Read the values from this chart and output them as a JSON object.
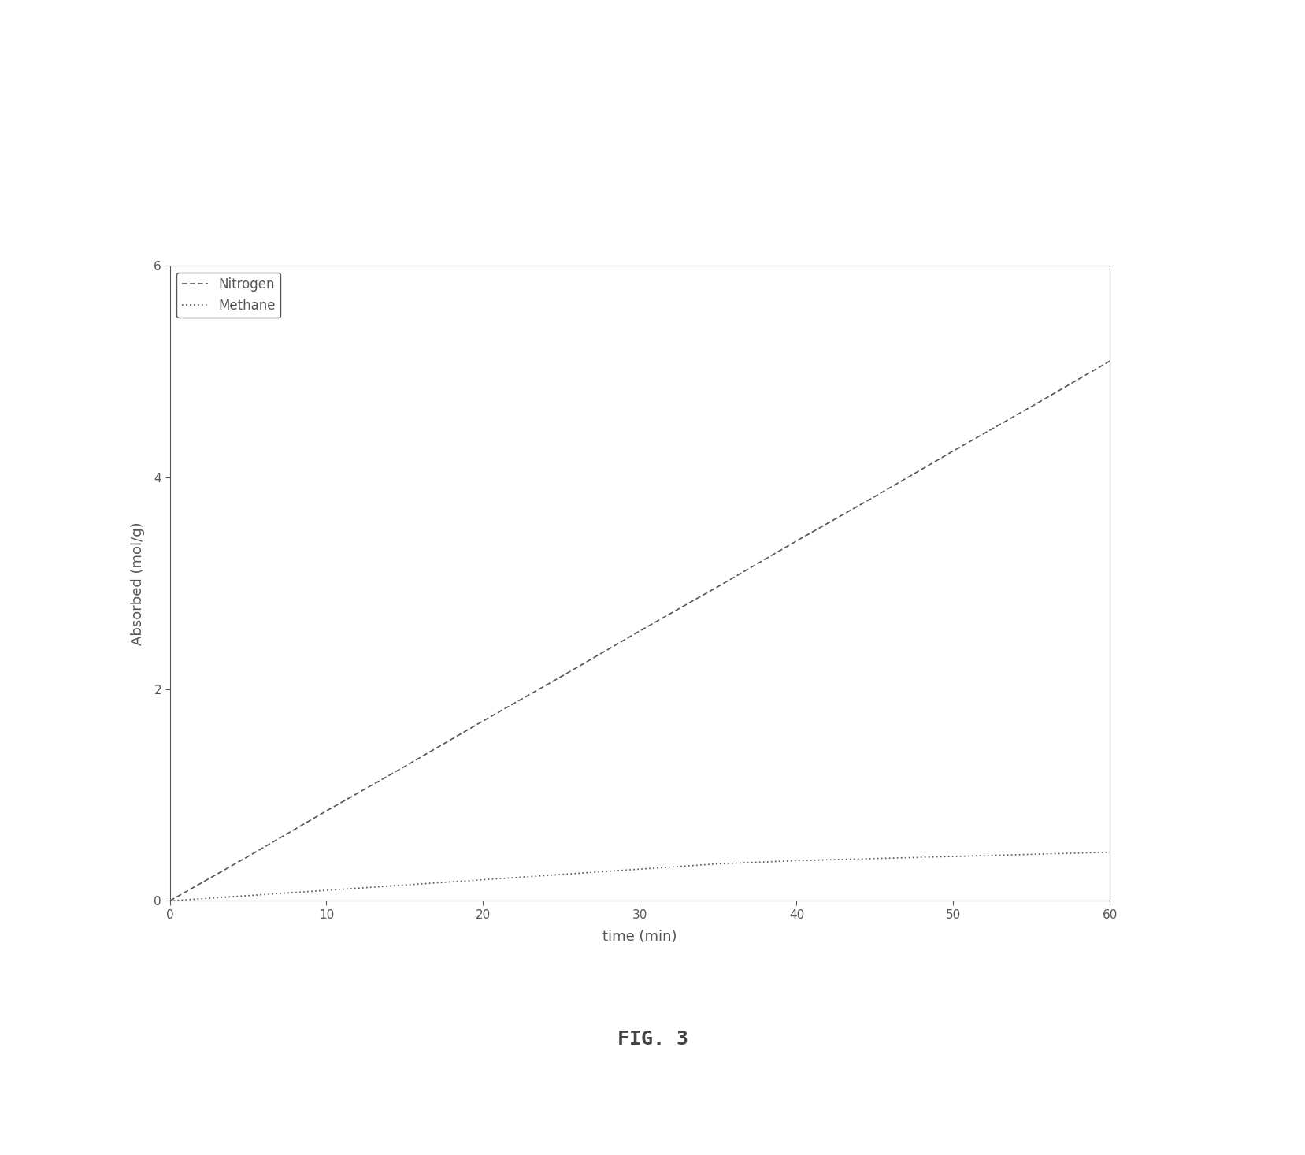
{
  "xlabel": "time (min)",
  "ylabel": "Absorbed (mol/g)",
  "figure_caption": "FIG. 3",
  "xlim": [
    0,
    60
  ],
  "ylim": [
    0,
    6
  ],
  "xticks": [
    0,
    10,
    20,
    30,
    40,
    50,
    60
  ],
  "yticks": [
    0,
    2,
    4,
    6
  ],
  "nitrogen_x": [
    0,
    5,
    10,
    15,
    20,
    25,
    30,
    35,
    40,
    45,
    50,
    55,
    60
  ],
  "nitrogen_y": [
    0,
    0.42,
    0.85,
    1.27,
    1.7,
    2.12,
    2.55,
    2.97,
    3.4,
    3.82,
    4.25,
    4.67,
    5.1
  ],
  "methane_x": [
    0,
    5,
    10,
    15,
    20,
    25,
    30,
    35,
    40,
    45,
    50,
    55,
    60
  ],
  "methane_y": [
    0,
    0.05,
    0.1,
    0.15,
    0.2,
    0.25,
    0.3,
    0.35,
    0.38,
    0.4,
    0.42,
    0.44,
    0.46
  ],
  "nitrogen_label": "Nitrogen",
  "methane_label": "Methane",
  "line_color": "#555555",
  "background_color": "#ffffff",
  "font_size_label": 13,
  "font_size_tick": 11,
  "font_size_legend": 12,
  "font_size_caption": 18,
  "linewidth": 1.2
}
